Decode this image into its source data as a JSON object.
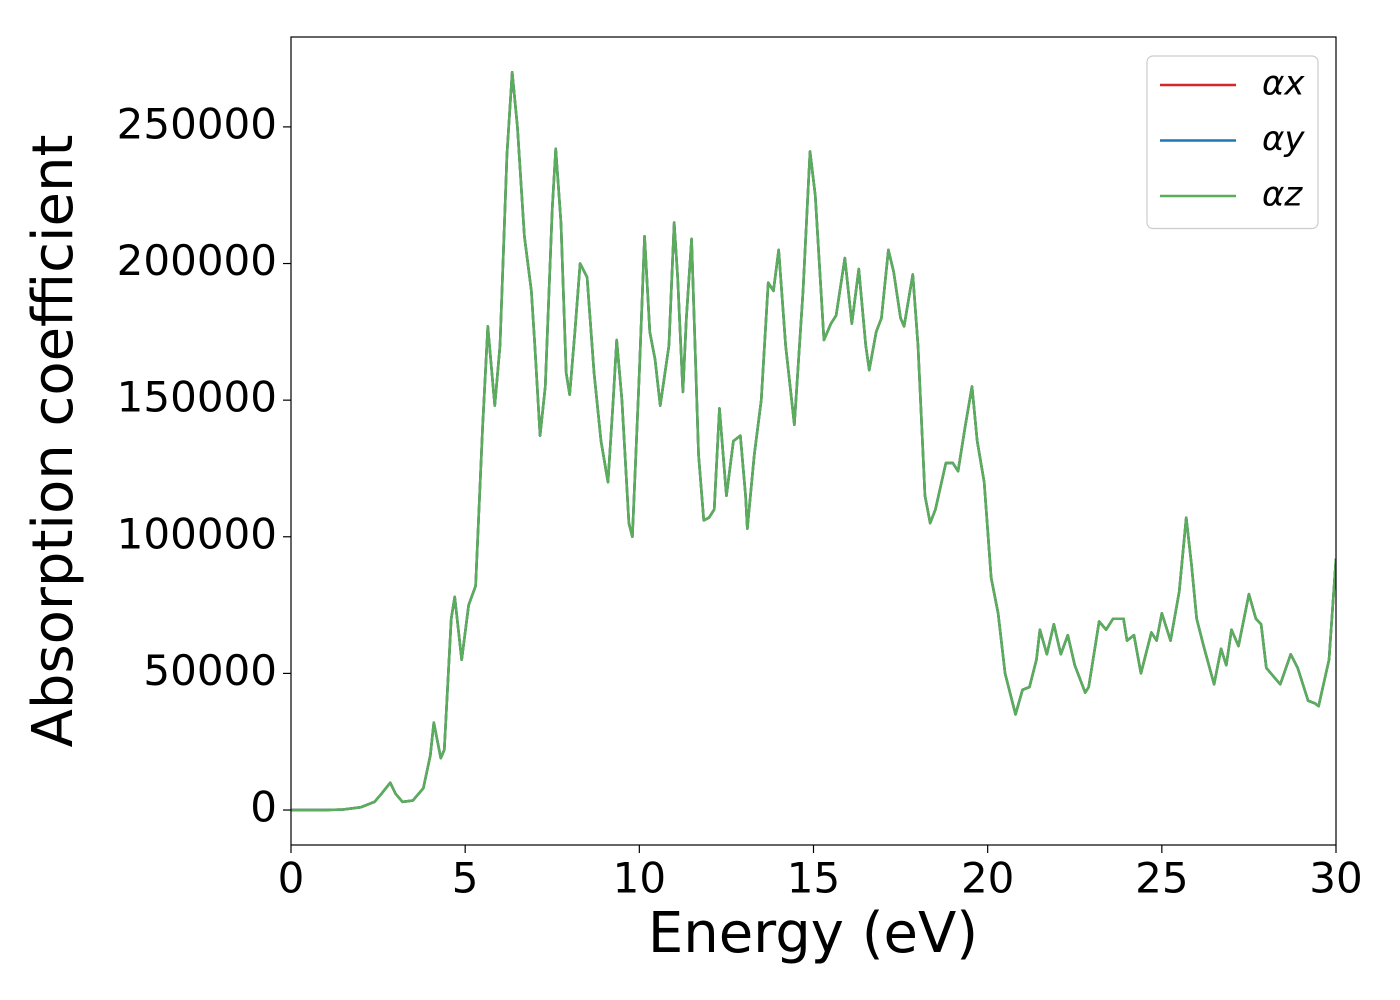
{
  "chart_data": {
    "type": "line",
    "xlabel": "Energy (eV)",
    "ylabel": "Absorption coefficient",
    "xlim": [
      0,
      30
    ],
    "ylim": [
      -12800,
      282900
    ],
    "xticks": [
      0,
      5,
      10,
      15,
      20,
      25,
      30
    ],
    "yticks": [
      0,
      50000,
      100000,
      150000,
      200000,
      250000
    ],
    "legend": "upper right",
    "grid": false,
    "x": [
      0,
      1,
      1.5,
      2,
      2.4,
      2.6,
      2.85,
      3.0,
      3.2,
      3.5,
      3.8,
      4.0,
      4.1,
      4.3,
      4.4,
      4.6,
      4.7,
      4.9,
      5.0,
      5.1,
      5.3,
      5.5,
      5.65,
      5.85,
      6.0,
      6.2,
      6.35,
      6.5,
      6.7,
      6.9,
      7.0,
      7.15,
      7.3,
      7.5,
      7.6,
      7.75,
      7.9,
      8.0,
      8.15,
      8.3,
      8.5,
      8.7,
      8.9,
      9.1,
      9.25,
      9.35,
      9.5,
      9.7,
      9.8,
      10.0,
      10.15,
      10.3,
      10.45,
      10.6,
      10.85,
      11.0,
      11.1,
      11.25,
      11.35,
      11.5,
      11.7,
      11.85,
      12.0,
      12.15,
      12.3,
      12.5,
      12.7,
      12.9,
      13.05,
      13.1,
      13.3,
      13.5,
      13.7,
      13.85,
      14.0,
      14.2,
      14.45,
      14.7,
      14.9,
      15.05,
      15.3,
      15.5,
      15.65,
      15.9,
      16.1,
      16.3,
      16.5,
      16.6,
      16.8,
      16.95,
      17.15,
      17.3,
      17.5,
      17.6,
      17.85,
      18.0,
      18.2,
      18.35,
      18.5,
      18.8,
      19.0,
      19.15,
      19.35,
      19.55,
      19.7,
      19.9,
      20.1,
      20.3,
      20.5,
      20.8,
      21.0,
      21.2,
      21.4,
      21.5,
      21.7,
      21.9,
      22.1,
      22.3,
      22.5,
      22.8,
      22.9,
      23.2,
      23.4,
      23.6,
      23.9,
      24.0,
      24.2,
      24.4,
      24.7,
      24.85,
      25.0,
      25.25,
      25.5,
      25.7,
      25.85,
      26.0,
      26.2,
      26.5,
      26.7,
      26.85,
      27.0,
      27.2,
      27.5,
      27.7,
      27.85,
      28.0,
      28.2,
      28.4,
      28.7,
      28.9,
      29.2,
      29.4,
      29.5,
      29.8,
      30.0
    ],
    "series": [
      {
        "name": "αx",
        "color": "#d62728",
        "values": [
          0,
          0,
          200,
          1000,
          3000,
          6000,
          10000,
          6000,
          3000,
          3500,
          8000,
          20000,
          32000,
          19000,
          22000,
          70000,
          78000,
          55000,
          65000,
          75000,
          82000,
          140000,
          177000,
          148000,
          170000,
          240000,
          270000,
          250000,
          210000,
          190000,
          170000,
          137000,
          155000,
          220000,
          242000,
          215000,
          160000,
          152000,
          175000,
          200000,
          195000,
          160000,
          135000,
          120000,
          150000,
          172000,
          150000,
          105000,
          100000,
          160000,
          210000,
          175000,
          165000,
          148000,
          170000,
          215000,
          195000,
          153000,
          180000,
          209000,
          130000,
          106000,
          107000,
          110000,
          147000,
          115000,
          135000,
          137000,
          115000,
          103000,
          130000,
          150000,
          193000,
          190000,
          205000,
          170000,
          141000,
          190000,
          241000,
          225000,
          172000,
          178000,
          181000,
          202000,
          178000,
          198000,
          170000,
          161000,
          175000,
          180000,
          205000,
          197000,
          180000,
          177000,
          196000,
          170000,
          115000,
          105000,
          110000,
          127000,
          127000,
          124000,
          140000,
          155000,
          135000,
          120000,
          85000,
          72000,
          50000,
          35000,
          44000,
          45000,
          55000,
          66000,
          57000,
          68000,
          57000,
          64000,
          53000,
          43000,
          45000,
          69000,
          66000,
          70000,
          70000,
          62000,
          64000,
          50000,
          65000,
          62000,
          72000,
          62000,
          80000,
          107000,
          90000,
          70000,
          60000,
          46000,
          59000,
          53000,
          66000,
          60000,
          79000,
          70000,
          68000,
          52000,
          49000,
          46000,
          57000,
          52000,
          40000,
          39000,
          38000,
          55000,
          92000
        ]
      },
      {
        "name": "αy",
        "color": "#1f77b4",
        "values": [
          0,
          0,
          200,
          1000,
          3000,
          6000,
          10000,
          6000,
          3000,
          3500,
          8000,
          20000,
          32000,
          19000,
          22000,
          70000,
          78000,
          55000,
          65000,
          75000,
          82000,
          140000,
          177000,
          148000,
          170000,
          240000,
          270000,
          250000,
          210000,
          190000,
          170000,
          137000,
          155000,
          220000,
          242000,
          215000,
          160000,
          152000,
          175000,
          200000,
          195000,
          160000,
          135000,
          120000,
          150000,
          172000,
          150000,
          105000,
          100000,
          160000,
          210000,
          175000,
          165000,
          148000,
          170000,
          215000,
          195000,
          153000,
          180000,
          209000,
          130000,
          106000,
          107000,
          110000,
          147000,
          115000,
          135000,
          137000,
          115000,
          103000,
          130000,
          150000,
          193000,
          190000,
          205000,
          170000,
          141000,
          190000,
          241000,
          225000,
          172000,
          178000,
          181000,
          202000,
          178000,
          198000,
          170000,
          161000,
          175000,
          180000,
          205000,
          197000,
          180000,
          177000,
          196000,
          170000,
          115000,
          105000,
          110000,
          127000,
          127000,
          124000,
          140000,
          155000,
          135000,
          120000,
          85000,
          72000,
          50000,
          35000,
          44000,
          45000,
          55000,
          66000,
          57000,
          68000,
          57000,
          64000,
          53000,
          43000,
          45000,
          69000,
          66000,
          70000,
          70000,
          62000,
          64000,
          50000,
          65000,
          62000,
          72000,
          62000,
          80000,
          107000,
          90000,
          70000,
          60000,
          46000,
          59000,
          53000,
          66000,
          60000,
          79000,
          70000,
          68000,
          52000,
          49000,
          46000,
          57000,
          52000,
          40000,
          39000,
          38000,
          55000,
          92000
        ]
      },
      {
        "name": "αz",
        "color": "#5aad5a",
        "values": [
          0,
          0,
          200,
          1000,
          3000,
          6000,
          10000,
          6000,
          3000,
          3500,
          8000,
          20000,
          32000,
          19000,
          22000,
          70000,
          78000,
          55000,
          65000,
          75000,
          82000,
          140000,
          177000,
          148000,
          170000,
          240000,
          270000,
          250000,
          210000,
          190000,
          170000,
          137000,
          155000,
          220000,
          242000,
          215000,
          160000,
          152000,
          175000,
          200000,
          195000,
          160000,
          135000,
          120000,
          150000,
          172000,
          150000,
          105000,
          100000,
          160000,
          210000,
          175000,
          165000,
          148000,
          170000,
          215000,
          195000,
          153000,
          180000,
          209000,
          130000,
          106000,
          107000,
          110000,
          147000,
          115000,
          135000,
          137000,
          115000,
          103000,
          130000,
          150000,
          193000,
          190000,
          205000,
          170000,
          141000,
          190000,
          241000,
          225000,
          172000,
          178000,
          181000,
          202000,
          178000,
          198000,
          170000,
          161000,
          175000,
          180000,
          205000,
          197000,
          180000,
          177000,
          196000,
          170000,
          115000,
          105000,
          110000,
          127000,
          127000,
          124000,
          140000,
          155000,
          135000,
          120000,
          85000,
          72000,
          50000,
          35000,
          44000,
          45000,
          55000,
          66000,
          57000,
          68000,
          57000,
          64000,
          53000,
          43000,
          45000,
          69000,
          66000,
          70000,
          70000,
          62000,
          64000,
          50000,
          65000,
          62000,
          72000,
          62000,
          80000,
          107000,
          90000,
          70000,
          60000,
          46000,
          59000,
          53000,
          66000,
          60000,
          79000,
          70000,
          68000,
          52000,
          49000,
          46000,
          57000,
          52000,
          40000,
          39000,
          38000,
          55000,
          92000
        ]
      }
    ]
  }
}
